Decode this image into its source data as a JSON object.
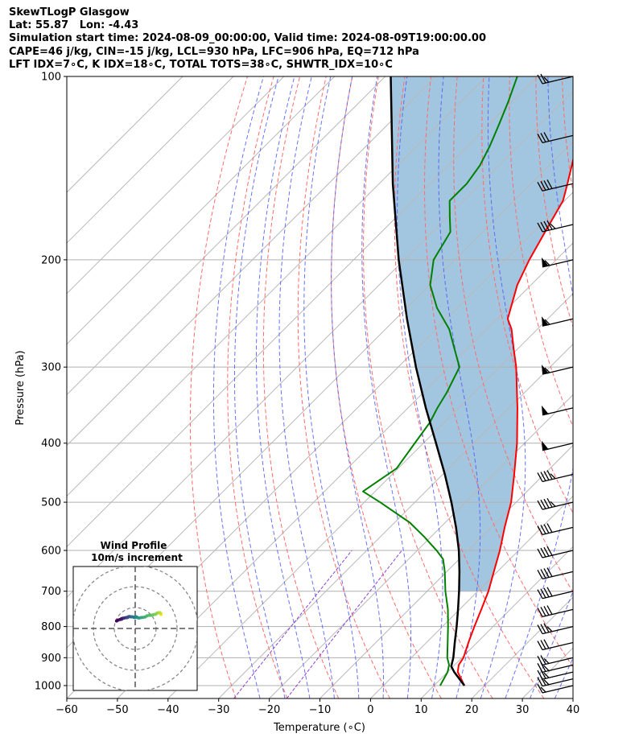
{
  "header": {
    "line1": "SkewTLogP Glasgow",
    "line2": "Lat: 55.87   Lon: -4.43",
    "line3": "Simulation start time: 2024-08-09_00:00:00, Valid time: 2024-08-09T19:00:00.00",
    "line4": "CAPE=46 j/kg, CIN=-15 j/kg, LCL=930 hPa, LFC=906 hPa, EQ=712 hPa",
    "line5": "LFT IDX=7∘C, K IDX=18∘C, TOTAL TOTS=38∘C, SHWTR_IDX=10∘C"
  },
  "colors": {
    "temperature": "#ff0000",
    "dewpoint": "#008000",
    "parcel": "#000000",
    "cape_fill": "#a3c6e0",
    "dry_adiabat": "#ff6b6b",
    "moist_adiabat": "#4f5bf5",
    "isotherm": "#b8b8b8",
    "mixing_ratio": "#8d3fd4",
    "hodo_ring": "#808080"
  },
  "chart_data": [
    {
      "type": "line",
      "subtype": "skew-t log-p",
      "xlabel": "Temperature (∘C)",
      "ylabel": "Pressure (hPa)",
      "xlim": [
        -60,
        40
      ],
      "ylim": [
        1050,
        100
      ],
      "yscale": "log",
      "x_ticks": [
        "−60",
        "−50",
        "−40",
        "−30",
        "−20",
        "−10",
        "0",
        "10",
        "20",
        "30",
        "40"
      ],
      "y_ticks": [
        "100",
        "200",
        "300",
        "400",
        "500",
        "600",
        "700",
        "800",
        "900",
        "1000"
      ],
      "grid": true,
      "series": [
        {
          "key": "temperature",
          "p": [
            1000,
            950,
            925,
            900,
            850,
            800,
            750,
            700,
            650,
            600,
            550,
            500,
            450,
            400,
            350,
            300,
            280,
            260,
            250,
            220,
            200,
            180,
            160,
            150,
            130,
            120,
            110,
            100
          ],
          "t": [
            16,
            12,
            10.8,
            10.3,
            8.3,
            6.3,
            4.3,
            2.1,
            -0.7,
            -3.7,
            -7.3,
            -11,
            -15.9,
            -21.5,
            -28.4,
            -36.7,
            -40.8,
            -45.1,
            -47.9,
            -52.7,
            -55.3,
            -57.7,
            -60.3,
            -62.8,
            -68.5,
            -72.5,
            -76,
            -80
          ]
        },
        {
          "key": "dewpoint",
          "p": [
            1000,
            950,
            925,
            900,
            850,
            800,
            750,
            700,
            650,
            620,
            600,
            570,
            540,
            500,
            480,
            440,
            400,
            370,
            350,
            330,
            300,
            280,
            260,
            240,
            220,
            200,
            180,
            170,
            160,
            150,
            140,
            130,
            120,
            110,
            100
          ],
          "t": [
            11.2,
            10,
            8.9,
            7.1,
            4.2,
            1.1,
            -2.3,
            -6.4,
            -10.4,
            -13.2,
            -16.2,
            -21.3,
            -27,
            -36.9,
            -42.4,
            -40.3,
            -41.7,
            -42.8,
            -44.2,
            -45.4,
            -47.9,
            -52.5,
            -57.4,
            -64,
            -69.9,
            -74.2,
            -76.4,
            -79.5,
            -82.7,
            -82.7,
            -83.7,
            -85.6,
            -88,
            -90.7,
            -93.9
          ]
        },
        {
          "key": "parcel",
          "p": [
            1000,
            950,
            930,
            900,
            850,
            800,
            750,
            700,
            650,
            600,
            550,
            500,
            450,
            400,
            350,
            300,
            250,
            200,
            150,
            100
          ],
          "t": [
            16,
            11.3,
            9.6,
            8.3,
            5.6,
            2.8,
            -0.3,
            -3.7,
            -7.5,
            -11.8,
            -16.9,
            -22.8,
            -29.6,
            -37.5,
            -46.5,
            -56.5,
            -67.8,
            -81.1,
            -97.3,
            -118.9
          ]
        }
      ]
    },
    {
      "type": "scatter",
      "subtype": "hodograph",
      "title": "Wind Profile",
      "subtitle": "10m/s increment",
      "u": [
        12.3,
        12.4,
        12.0,
        11.6,
        11.0,
        10.4,
        9.8,
        9.0,
        8.2,
        7.4,
        6.6,
        5.6,
        4.7,
        3.7,
        2.7,
        1.8,
        1.1,
        0.5,
        -0.1,
        -0.5,
        -0.9,
        -1.6,
        -2.2,
        -2.8,
        -3.3,
        -3.6,
        -4.0,
        -4.5,
        -5.2,
        -5.8,
        -6.5,
        -6.5,
        -7.3,
        -8.2,
        -8.9
      ],
      "v": [
        6.7,
        7.0,
        7.3,
        7.6,
        7.5,
        7.3,
        6.8,
        6.7,
        6.4,
        6.3,
        6.3,
        6.0,
        5.5,
        5.3,
        5.2,
        5.0,
        5.2,
        5.6,
        5.3,
        5.3,
        5.5,
        5.6,
        5.6,
        5.7,
        5.6,
        5.3,
        5.2,
        5.2,
        5.0,
        4.9,
        4.7,
        4.4,
        4.3,
        4.0,
        3.6
      ],
      "rings_ms": [
        10,
        20,
        30
      ],
      "ring_increment": "10m/s"
    }
  ],
  "wind_barbs": {
    "p": [
      1000,
      975,
      950,
      925,
      900,
      850,
      800,
      750,
      700,
      650,
      600,
      550,
      500,
      450,
      400,
      350,
      300,
      250,
      200,
      175,
      150,
      125,
      100
    ],
    "speed_kt": [
      15,
      25,
      25,
      25,
      25,
      30,
      35,
      40,
      40,
      40,
      40,
      40,
      45,
      45,
      50,
      50,
      55,
      55,
      55,
      45,
      40,
      30,
      25
    ],
    "dir_deg": [
      255,
      250,
      250,
      250,
      255,
      260,
      255,
      255,
      255,
      260,
      260,
      260,
      260,
      260,
      255,
      255,
      255,
      255,
      255,
      255,
      255,
      255,
      255
    ]
  }
}
